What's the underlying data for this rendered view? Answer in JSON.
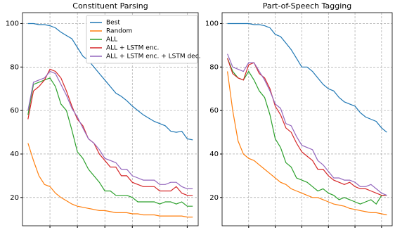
{
  "chart_data": [
    {
      "type": "line",
      "title": "Constituent Parsing",
      "x": [
        1,
        2,
        3,
        4,
        5,
        6,
        7,
        8,
        9,
        10,
        11,
        12,
        13,
        14,
        15,
        16,
        17,
        18,
        19,
        20,
        21,
        22,
        23,
        24,
        25,
        26,
        27,
        28,
        29,
        30,
        31
      ],
      "xlim": [
        0,
        32
      ],
      "xticks": [
        5,
        10,
        15,
        20,
        25,
        30
      ],
      "ylim": [
        7,
        105
      ],
      "yticks": [
        20,
        40,
        60,
        80,
        100
      ],
      "grid": true,
      "legend": "upper center",
      "series": [
        {
          "name": "Best",
          "color": "#1f77b4",
          "values": [
            100,
            100,
            99.5,
            99.5,
            99,
            98,
            96,
            94.5,
            93,
            89,
            85,
            83,
            80,
            77,
            74,
            71,
            68,
            66.5,
            64.5,
            62,
            60,
            58,
            56.5,
            55,
            54,
            53,
            50.5,
            50,
            50.5,
            47,
            46.5
          ]
        },
        {
          "name": "Random",
          "color": "#ff7f0e",
          "values": [
            45,
            37,
            30,
            26,
            25,
            22,
            20,
            18.5,
            17,
            16,
            15.5,
            15,
            14.5,
            14,
            14,
            13.5,
            13,
            13,
            13,
            12.5,
            12.5,
            12,
            12,
            12,
            11.5,
            11.5,
            11.5,
            11.5,
            11.5,
            11,
            11
          ]
        },
        {
          "name": "ALL",
          "color": "#2ca02c",
          "values": [
            58,
            72,
            73,
            74,
            75,
            71,
            63,
            60,
            51,
            41,
            38,
            33,
            30,
            27,
            23,
            23,
            21,
            21,
            21,
            20,
            18,
            18,
            18,
            18,
            17,
            18,
            18,
            17,
            18,
            16,
            16
          ]
        },
        {
          "name": "ALL + LSTM enc.",
          "color": "#d62728",
          "values": [
            56,
            69,
            71,
            74,
            79,
            78,
            75,
            69,
            62,
            56,
            53,
            47,
            45,
            40,
            37,
            34,
            34,
            30,
            30,
            27,
            26,
            25,
            25,
            25,
            23,
            23,
            23,
            25,
            22,
            21,
            21
          ]
        },
        {
          "name": "ALL + LSTM enc. + LSTM dec.",
          "color": "#9467bd",
          "values": [
            60,
            73,
            74,
            75,
            78,
            77,
            72,
            67,
            61,
            57,
            52,
            47,
            45,
            42,
            38,
            37,
            36,
            33,
            33,
            30,
            29,
            28,
            28,
            28,
            26,
            26,
            27,
            27,
            25,
            24,
            24
          ]
        }
      ]
    },
    {
      "type": "line",
      "title": "Part-of-Speech Tagging",
      "x": [
        1,
        2,
        3,
        4,
        5,
        6,
        7,
        8,
        9,
        10,
        11,
        12,
        13,
        14,
        15,
        16,
        17,
        18,
        19,
        20,
        21,
        22,
        23,
        24,
        25,
        26,
        27,
        28,
        29,
        30,
        31
      ],
      "xlim": [
        0,
        32
      ],
      "xticks": [
        5,
        10,
        15,
        20,
        25,
        30
      ],
      "ylim": [
        7,
        105
      ],
      "yticks": [
        20,
        40,
        60,
        80,
        100
      ],
      "grid": true,
      "series": [
        {
          "name": "Best",
          "color": "#1f77b4",
          "values": [
            100,
            100,
            100,
            100,
            100,
            99.5,
            99.5,
            99,
            98,
            95,
            94,
            91,
            88,
            84,
            80,
            80,
            78,
            75,
            72,
            70,
            69,
            66,
            64,
            63,
            62,
            59,
            57,
            56,
            55,
            52,
            50
          ]
        },
        {
          "name": "Random",
          "color": "#ff7f0e",
          "values": [
            78,
            60,
            46,
            40,
            38,
            37,
            35,
            33,
            31,
            29,
            27,
            26,
            24,
            23,
            22,
            21,
            20,
            20,
            19,
            18,
            17,
            16.5,
            16,
            15,
            14.5,
            14,
            13.5,
            13,
            13,
            12.5,
            12
          ]
        },
        {
          "name": "ALL",
          "color": "#2ca02c",
          "values": [
            84,
            78,
            75,
            74,
            78,
            74,
            69,
            66,
            58,
            47,
            43,
            36,
            34,
            29,
            28,
            27,
            25,
            23,
            24,
            22,
            21,
            19,
            20,
            19,
            18,
            17,
            18,
            19,
            17,
            21,
            21
          ]
        },
        {
          "name": "ALL + LSTM enc.",
          "color": "#d62728",
          "values": [
            84,
            77,
            75,
            74,
            81,
            82,
            77,
            75,
            70,
            62,
            58,
            52,
            50,
            45,
            41,
            39,
            37,
            33,
            33,
            30,
            28,
            27,
            26,
            27,
            25,
            24,
            24,
            23,
            22,
            21,
            21
          ]
        },
        {
          "name": "ALL + LSTM enc. + LSTM dec.",
          "color": "#9467bd",
          "values": [
            86,
            80,
            79,
            78,
            82,
            82,
            78,
            74,
            69,
            63,
            61,
            54,
            53,
            48,
            44,
            43,
            42,
            37,
            35,
            32,
            29,
            29,
            28,
            28,
            27,
            25,
            25,
            26,
            24,
            22,
            21
          ]
        }
      ]
    }
  ]
}
